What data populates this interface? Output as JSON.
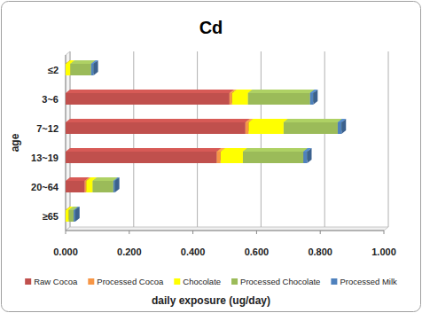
{
  "chart_data": {
    "type": "bar",
    "title": "Cd",
    "x_label": "daily exposure (ug/day)",
    "y_label": "age",
    "orientation": "horizontal",
    "stacked": true,
    "grid": true,
    "legend": "bottom",
    "categories": [
      "≤2",
      "3~6",
      "7~12",
      "13~19",
      "20~64",
      "≥65"
    ],
    "series": [
      {
        "name": "Raw Cocoa",
        "color": "#c0504d",
        "values": [
          0,
          0.515,
          0.565,
          0.475,
          0.06,
          0
        ]
      },
      {
        "name": "Processed Cocoa",
        "color": "#f79646",
        "values": [
          0,
          0.008,
          0.01,
          0.012,
          0.005,
          0
        ]
      },
      {
        "name": "Chocolate",
        "color": "#ffff00",
        "values": [
          0.015,
          0.05,
          0.11,
          0.07,
          0.02,
          0.01
        ]
      },
      {
        "name": "Processed Chocolate",
        "color": "#9bbb59",
        "values": [
          0.065,
          0.195,
          0.17,
          0.19,
          0.065,
          0.015
        ]
      },
      {
        "name": "Processed Milk",
        "color": "#4f81bd",
        "values": [
          0.008,
          0.01,
          0.012,
          0.012,
          0.005,
          0.005
        ]
      }
    ],
    "xlim": [
      0,
      1
    ],
    "xticks": [
      {
        "value": 0,
        "label": "0.000"
      },
      {
        "value": 0.2,
        "label": "0.200"
      },
      {
        "value": 0.4,
        "label": "0.400"
      },
      {
        "value": 0.6,
        "label": "0.600"
      },
      {
        "value": 0.8,
        "label": "0.800"
      },
      {
        "value": 1,
        "label": "1.000"
      }
    ]
  }
}
